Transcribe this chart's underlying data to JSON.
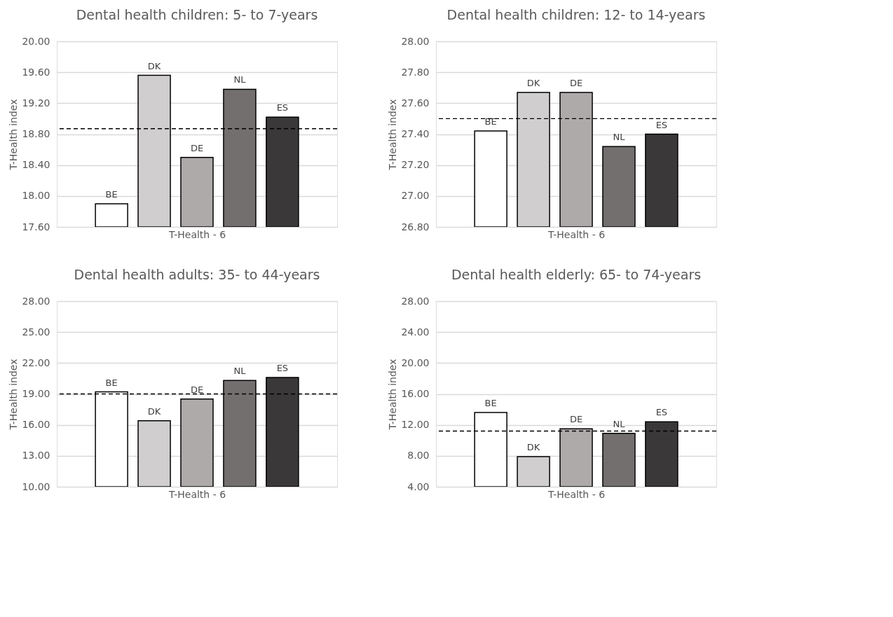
{
  "chart_data": [
    {
      "type": "bar",
      "title": "Dental health children: 5- to 7-years",
      "xlabel": "T-Health - 6",
      "ylabel": "T-Health index",
      "categories": [
        "BE",
        "DK",
        "DE",
        "NL",
        "ES"
      ],
      "values": [
        17.9,
        19.56,
        18.5,
        19.38,
        19.02
      ],
      "colors": [
        "#ffffff",
        "#d0cecf",
        "#aeaaa9",
        "#736f6e",
        "#3a3838"
      ],
      "ylim": [
        17.6,
        20.0
      ],
      "yticks": [
        {
          "value": 17.6,
          "label": "17.60"
        },
        {
          "value": 18.0,
          "label": "18.00"
        },
        {
          "value": 18.4,
          "label": "18.40"
        },
        {
          "value": 18.8,
          "label": "18.80"
        },
        {
          "value": 19.2,
          "label": "19.20"
        },
        {
          "value": 19.6,
          "label": "19.60"
        },
        {
          "value": 20.0,
          "label": "20.00"
        }
      ],
      "grid": "y",
      "legend": false,
      "ref_lines": [
        {
          "axis": "y",
          "value": 18.87,
          "label": null,
          "color": "#000000",
          "line_style": "dashed"
        }
      ]
    },
    {
      "type": "bar",
      "title": "Dental health children: 12- to 14-years",
      "xlabel": "T-Health - 6",
      "ylabel": "T-Health index",
      "categories": [
        "BE",
        "DK",
        "DE",
        "NL",
        "ES"
      ],
      "values": [
        27.42,
        27.67,
        27.67,
        27.32,
        27.4
      ],
      "colors": [
        "#ffffff",
        "#d0cecf",
        "#aeaaa9",
        "#736f6e",
        "#3a3838"
      ],
      "ylim": [
        26.8,
        28.0
      ],
      "yticks": [
        {
          "value": 26.8,
          "label": "26.80"
        },
        {
          "value": 27.0,
          "label": "27.00"
        },
        {
          "value": 27.2,
          "label": "27.20"
        },
        {
          "value": 27.4,
          "label": "27.40"
        },
        {
          "value": 27.6,
          "label": "27.60"
        },
        {
          "value": 27.8,
          "label": "27.80"
        },
        {
          "value": 28.0,
          "label": "28.00"
        }
      ],
      "grid": "y",
      "legend": false,
      "ref_lines": [
        {
          "axis": "y",
          "value": 27.5,
          "label": null,
          "color": "#000000",
          "line_style": "dashed"
        }
      ]
    },
    {
      "type": "bar",
      "title": "Dental health adults: 35- to 44-years",
      "xlabel": "T-Health - 6",
      "ylabel": "T-Health index",
      "categories": [
        "BE",
        "DK",
        "DE",
        "NL",
        "ES"
      ],
      "values": [
        19.2,
        16.4,
        18.5,
        20.3,
        20.6
      ],
      "colors": [
        "#ffffff",
        "#d0cecf",
        "#aeaaa9",
        "#736f6e",
        "#3a3838"
      ],
      "ylim": [
        10.0,
        28.0
      ],
      "yticks": [
        {
          "value": 10,
          "label": "10.00"
        },
        {
          "value": 13,
          "label": "13.00"
        },
        {
          "value": 16,
          "label": "16.00"
        },
        {
          "value": 19,
          "label": "19.00"
        },
        {
          "value": 22,
          "label": "22.00"
        },
        {
          "value": 25,
          "label": "25.00"
        },
        {
          "value": 28,
          "label": "28.00"
        }
      ],
      "grid": "y",
      "legend": false,
      "ref_lines": [
        {
          "axis": "y",
          "value": 19.0,
          "label": null,
          "color": "#000000",
          "line_style": "dashed"
        }
      ]
    },
    {
      "type": "bar",
      "title": "Dental health elderly: 65- to 74-years",
      "xlabel": "T-Health - 6",
      "ylabel": "T-Health index",
      "categories": [
        "BE",
        "DK",
        "DE",
        "NL",
        "ES"
      ],
      "values": [
        13.6,
        7.9,
        11.5,
        10.9,
        12.4
      ],
      "colors": [
        "#ffffff",
        "#d0cecf",
        "#aeaaa9",
        "#736f6e",
        "#3a3838"
      ],
      "ylim": [
        4.0,
        28.0
      ],
      "yticks": [
        {
          "value": 4,
          "label": "4.00"
        },
        {
          "value": 8,
          "label": "8.00"
        },
        {
          "value": 12,
          "label": "12.00"
        },
        {
          "value": 16,
          "label": "16.00"
        },
        {
          "value": 20,
          "label": "20.00"
        },
        {
          "value": 24,
          "label": "24.00"
        },
        {
          "value": 28,
          "label": "28.00"
        }
      ],
      "grid": "y",
      "legend": false,
      "ref_lines": [
        {
          "axis": "y",
          "value": 11.2,
          "label": null,
          "color": "#000000",
          "line_style": "dashed"
        }
      ]
    }
  ]
}
